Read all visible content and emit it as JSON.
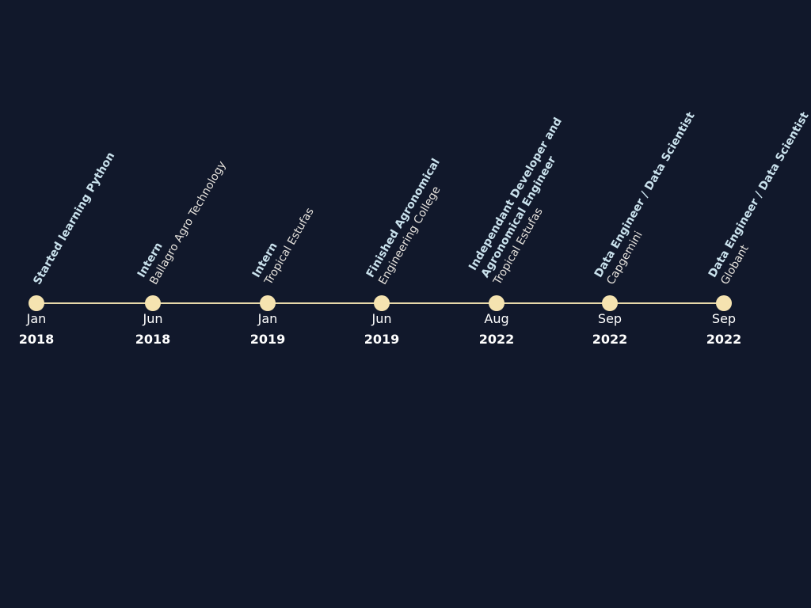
{
  "events": [
    {
      "month": "Jan",
      "year": "2018",
      "lines": [
        {
          "text": "Started learning Python",
          "bold": true
        }
      ]
    },
    {
      "month": "Jun",
      "year": "2018",
      "lines": [
        {
          "text": "Intern",
          "bold": true
        },
        {
          "text": "Ballagro Agro Technology",
          "bold": false
        }
      ]
    },
    {
      "month": "Jan",
      "year": "2019",
      "lines": [
        {
          "text": "Intern",
          "bold": true
        },
        {
          "text": "Tropical Estufas",
          "bold": false
        }
      ]
    },
    {
      "month": "Jun",
      "year": "2019",
      "lines": [
        {
          "text": "Finished Agronomical",
          "bold": true
        },
        {
          "text": "Engineering College",
          "bold": false
        }
      ]
    },
    {
      "month": "Aug",
      "year": "2022",
      "lines": [
        {
          "text": "Independant Developer and",
          "bold": true
        },
        {
          "text": "Agronomical Engineer",
          "bold": true
        },
        {
          "text": "Tropical Estufas",
          "bold": false
        }
      ]
    },
    {
      "month": "Sep",
      "year": "2022",
      "lines": [
        {
          "text": "Data Engineer / Data Scientist",
          "bold": true
        },
        {
          "text": "Capgemini",
          "bold": false
        }
      ]
    },
    {
      "month": "Sep",
      "year": "2022",
      "lines": [
        {
          "text": "Data Engineer / Data Scientist",
          "bold": true
        },
        {
          "text": "Globant",
          "bold": false
        }
      ]
    }
  ],
  "colors": {
    "background": "#11182b",
    "track": "#e8d9aa",
    "dot": "#f5e3b0",
    "title_text": "#c9e1ec",
    "subtitle_text": "#e6e2dc"
  }
}
